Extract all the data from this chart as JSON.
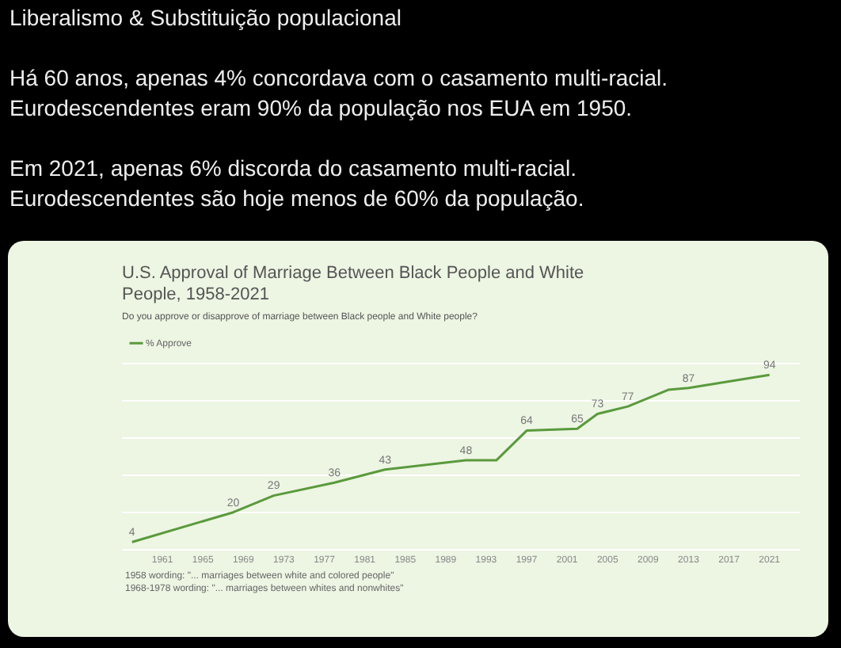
{
  "chart_data": {
    "type": "line",
    "title": "U.S. Approval of Marriage Between Black People and White People, 1958-2021",
    "subtitle": "Do you approve or disapprove of marriage between Black people and White people?",
    "annotations": [
      "Liberalismo & Substituição populacional",
      "Há 60 anos, apenas 4% concordava com o casamento multi-racial.\nEurodescendentes eram 90% da população nos EUA em 1950.",
      "Em 2021, apenas 6% discorda do casamento multi-racial.\nEurodescendentes são hoje menos de 60% da população.",
      "1958 wording: \"... marriages between white and colored people\"",
      "1968-1978 wording: \"... marriages between whites and nonwhites\""
    ],
    "x": [
      1958,
      1968,
      1972,
      1978,
      1983,
      1991,
      1994,
      1997,
      2002,
      2004,
      2007,
      2011,
      2013,
      2021
    ],
    "series": [
      {
        "name": "% Approve",
        "color": "#5a9a3c",
        "values": [
          4,
          20,
          29,
          36,
          43,
          48,
          48,
          64,
          65,
          73,
          77,
          86,
          87,
          94
        ],
        "value_labels": [
          "4",
          "20",
          "29",
          "36",
          "43",
          "48",
          null,
          "64",
          "65",
          "73",
          "77",
          null,
          "87",
          "94"
        ]
      }
    ],
    "xlim": [
      1957,
      2024
    ],
    "xticks": [
      1961,
      1965,
      1969,
      1973,
      1977,
      1981,
      1985,
      1989,
      1993,
      1997,
      2001,
      2005,
      2009,
      2013,
      2017,
      2021
    ],
    "ylim": [
      0,
      100
    ],
    "yticks": [
      {
        "value": 0,
        "label": null
      },
      {
        "value": 20,
        "label": null
      },
      {
        "value": 40,
        "label": null
      },
      {
        "value": 60,
        "label": null
      },
      {
        "value": 80,
        "label": null
      },
      {
        "value": 100,
        "label": null
      }
    ],
    "tick_labels": "x",
    "grid": "y",
    "legend": "top left",
    "marker": "none",
    "line_style": "solid"
  }
}
